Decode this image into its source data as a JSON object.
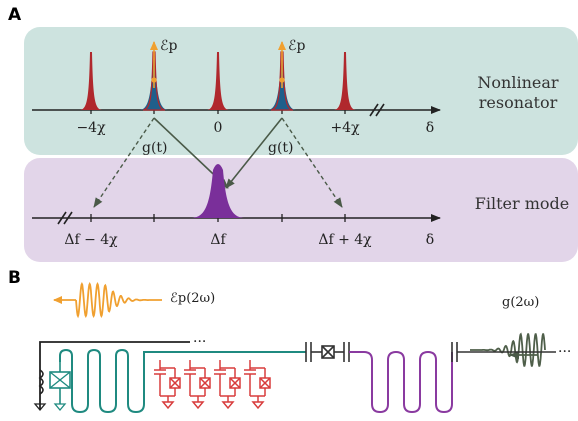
{
  "panel_a": {
    "letter": "A",
    "resonator": {
      "label_line1": "Nonlinear",
      "label_line2": "resonator",
      "tick_labels": [
        "−4χ",
        "0",
        "+4χ"
      ],
      "axis_label": "δ",
      "pump_label": "ℰp",
      "coupling_label": "g(t)",
      "colors": {
        "background": "#cde3df",
        "peak": "#b0282d",
        "pumped_peak": "#1f5f8b",
        "pump_arrow": "#f0a030"
      }
    },
    "filter": {
      "label": "Filter mode",
      "tick_labels": [
        "Δf − 4χ",
        "Δf",
        "Δf + 4χ"
      ],
      "axis_label": "δ",
      "colors": {
        "background": "#e2d5e9",
        "peak": "#7a2f9a"
      }
    }
  },
  "panel_b": {
    "letter": "B",
    "pump_label": "ℰp(2ω)",
    "drive_label": "g(2ω)",
    "ellipsis": "···",
    "colors": {
      "pump_wave": "#f0a030",
      "drive_wave": "#4f5f4a",
      "resonator_line": "#1f8a80",
      "filter_line": "#8a3aa0",
      "junctions": "#d83c3c"
    }
  }
}
